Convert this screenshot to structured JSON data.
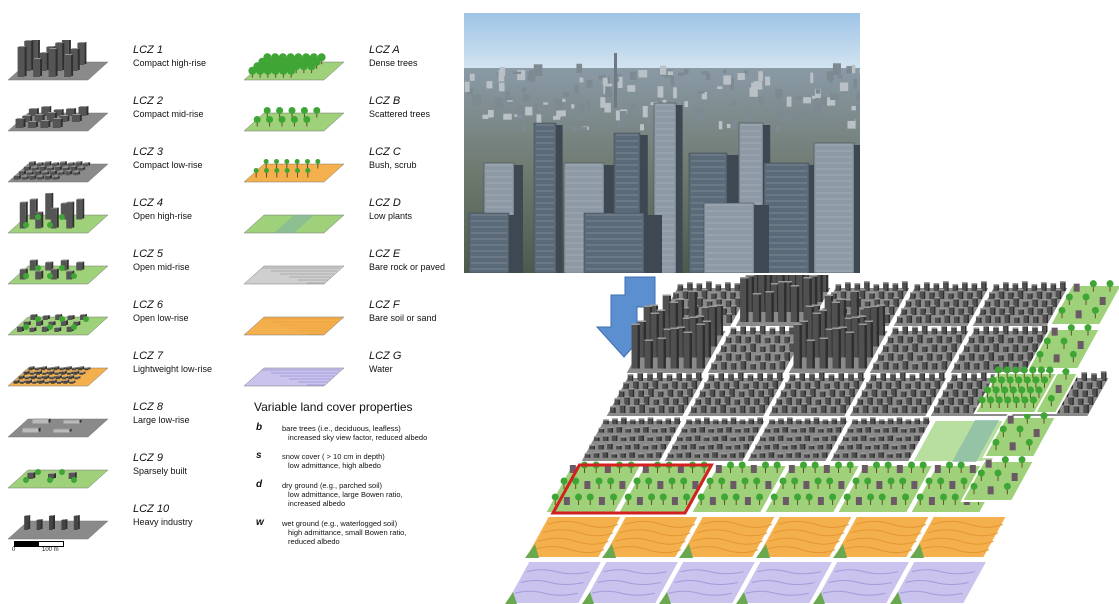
{
  "lcz_built": [
    {
      "code": "LCZ 1",
      "label": "Compact high-rise"
    },
    {
      "code": "LCZ 2",
      "label": "Compact mid-rise"
    },
    {
      "code": "LCZ 3",
      "label": "Compact low-rise"
    },
    {
      "code": "LCZ 4",
      "label": "Open high-rise"
    },
    {
      "code": "LCZ 5",
      "label": "Open mid-rise"
    },
    {
      "code": "LCZ 6",
      "label": "Open low-rise"
    },
    {
      "code": "LCZ 7",
      "label": "Lightweight low-rise"
    },
    {
      "code": "LCZ 8",
      "label": "Large low-rise"
    },
    {
      "code": "LCZ 9",
      "label": "Sparsely built"
    },
    {
      "code": "LCZ 10",
      "label": "Heavy industry"
    }
  ],
  "lcz_land": [
    {
      "code": "LCZ A",
      "label": "Dense trees"
    },
    {
      "code": "LCZ B",
      "label": "Scattered trees"
    },
    {
      "code": "LCZ C",
      "label": "Bush, scrub"
    },
    {
      "code": "LCZ D",
      "label": "Low plants"
    },
    {
      "code": "LCZ E",
      "label": "Bare rock or paved"
    },
    {
      "code": "LCZ F",
      "label": "Bare soil or sand"
    },
    {
      "code": "LCZ G",
      "label": "Water"
    }
  ],
  "variable_props": {
    "title": "Variable land cover properties",
    "items": [
      {
        "letter": "b",
        "line1": "bare trees (i.e., deciduous, leafless)",
        "line2": "increased sky view factor, reduced albedo",
        "line3": ""
      },
      {
        "letter": "s",
        "line1": "snow cover ( > 10 cm in depth)",
        "line2": "low admittance, high albedo",
        "line3": ""
      },
      {
        "letter": "d",
        "line1": "dry ground (e.g., parched soil)",
        "line2": "low admittance, large Bowen ratio,",
        "line3": "increased albedo"
      },
      {
        "letter": "w",
        "line1": "wet ground (e.g., waterlogged soil)",
        "line2": "high admittance, small Bowen ratio,",
        "line3": "reduced albedo"
      }
    ]
  },
  "scale": {
    "zero": "0",
    "distance": "100 m"
  },
  "colors": {
    "grass": "#9fd17a",
    "tree": "#3fa535",
    "building": "#555555",
    "soil": "#f5b04e",
    "water": "#c9c3ee",
    "paved": "#cfcfcf",
    "arrow": "#5b8fd0",
    "highlight": "#d42020"
  }
}
